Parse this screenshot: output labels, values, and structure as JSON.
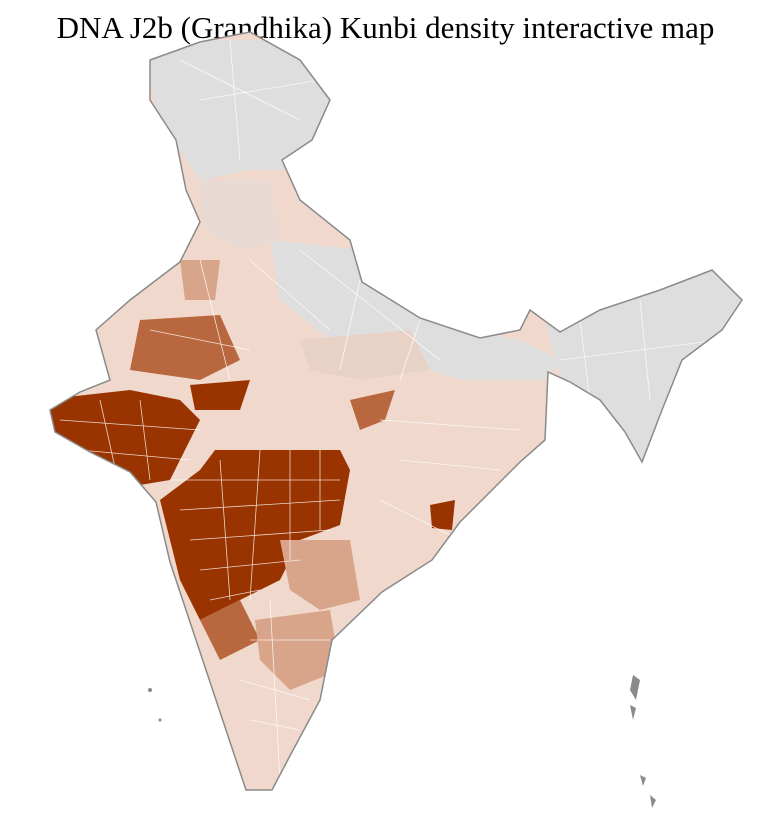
{
  "title": "DNA J2b (Grandhika) Kunbi density interactive map",
  "colors": {
    "no_data": "#dedede",
    "low": "#f0d8cc",
    "medium_low": "#d9a58a",
    "medium": "#b8673f",
    "high": "#993300",
    "border": "#8a8a8a",
    "district_lines": "#ffffff"
  }
}
